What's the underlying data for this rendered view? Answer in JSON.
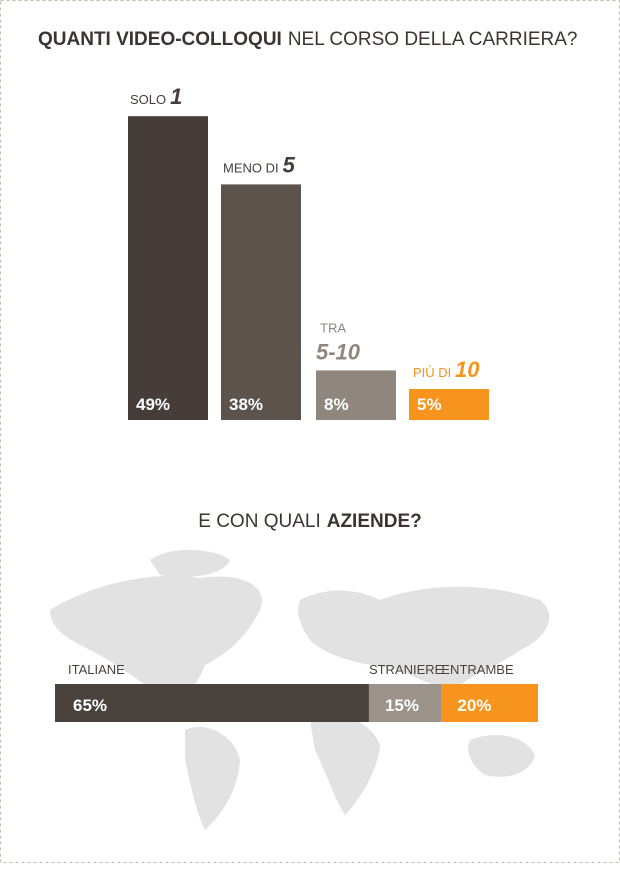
{
  "chart_data": [
    {
      "type": "bar",
      "title": [
        "QUANTI VIDEO-COLLOQUI",
        "NEL CORSO DELLA CARRIERA?"
      ],
      "categories": [
        [
          "SOLO",
          "1"
        ],
        [
          "MENO DI",
          "5"
        ],
        [
          "TRA",
          "5-10"
        ],
        [
          "PIÙ DI",
          "10"
        ]
      ],
      "values": [
        49,
        38,
        8,
        5
      ],
      "value_labels": [
        "49%",
        "38%",
        "8%",
        "5%"
      ],
      "colors": [
        "#463d38",
        "#5c534d",
        "#8f877d",
        "#f7941d"
      ],
      "label_colors": [
        "#463d38",
        "#463d38",
        "#8f877d",
        "#f7941d"
      ]
    },
    {
      "type": "stacked-bar",
      "title": [
        "E CON QUALI",
        "AZIENDE?"
      ],
      "series": [
        {
          "name": "ITALIANE",
          "color": "#4a423d",
          "values": [
            65
          ],
          "value_labels": [
            "65%"
          ]
        },
        {
          "name": "STRANIERE",
          "color": "#9b938a",
          "values": [
            15
          ],
          "value_labels": [
            "15%"
          ]
        },
        {
          "name": "ENTRAMBE",
          "color": "#f7941d",
          "values": [
            20
          ],
          "value_labels": [
            "20%"
          ]
        }
      ]
    }
  ]
}
